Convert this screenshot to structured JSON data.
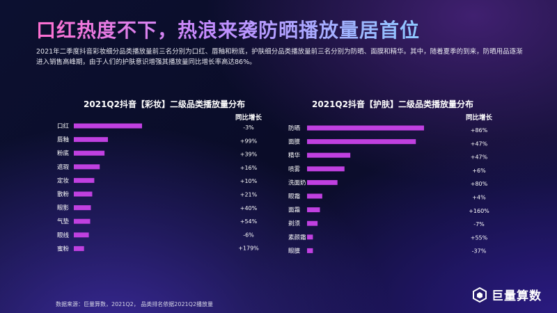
{
  "header": {
    "title": "口红热度不下，热浪来袭防晒播放量居首位",
    "intro": "2021年二季度抖音彩妆细分品类播放量前三名分别为口红、唇釉和粉底，护肤细分品类播放量前三名分别为防晒、面膜和精华。其中，随着夏季的到来，防晒用品逐渐进入销售高峰期，由于人们的护肤意识增强其播放量同比增长率高达86%。"
  },
  "footer": {
    "source": "数据来源：巨量算数，2021Q2， 品类排名依据2021Q2播放量",
    "brand": "巨量算数"
  },
  "colors": {
    "bar": "#c040e0",
    "title_gradient_start": "#ff6fd0",
    "title_gradient_end": "#8ec8ff"
  },
  "chart_data": [
    {
      "type": "bar",
      "orientation": "horizontal",
      "title": "2021Q2抖音【彩妆】二级品类播放量分布",
      "growth_header": "同比增长",
      "categories": [
        "口红",
        "唇釉",
        "粉底",
        "遮瑕",
        "定妆",
        "散粉",
        "眼影",
        "气垫",
        "眼线",
        "蜜粉"
      ],
      "values": [
        100,
        50,
        45,
        38,
        30,
        27,
        25,
        24,
        22,
        15
      ],
      "growth": [
        "-3%",
        "+99%",
        "+39%",
        "+16%",
        "+10%",
        "+21%",
        "+40%",
        "+54%",
        "-6%",
        "+179%"
      ]
    },
    {
      "type": "bar",
      "orientation": "horizontal",
      "title": "2021Q2抖音【护肤】二级品类播放量分布",
      "growth_header": "同比增长",
      "categories": [
        "防晒",
        "面膜",
        "精华",
        "喷雾",
        "洗面奶",
        "眼霜",
        "面霜",
        "剃须",
        "素颜霜",
        "眼膜"
      ],
      "values": [
        100,
        93,
        37,
        32,
        26,
        13,
        11,
        9,
        5,
        5
      ],
      "growth": [
        "+86%",
        "+47%",
        "+47%",
        "+6%",
        "+80%",
        "+4%",
        "+160%",
        "-7%",
        "+55%",
        "-37%"
      ]
    }
  ]
}
